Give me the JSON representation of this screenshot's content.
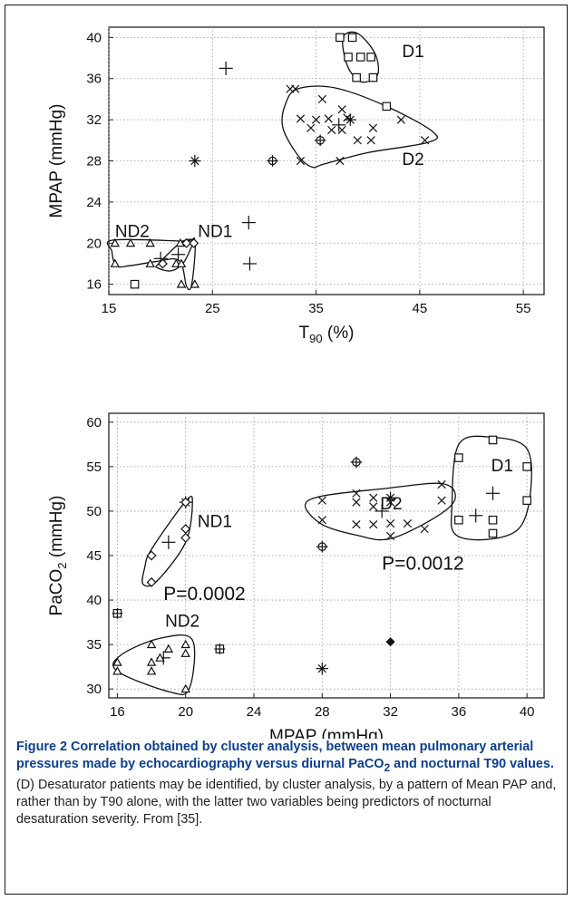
{
  "chart_data": [
    {
      "type": "scatter",
      "title": "",
      "xlabel": "T90 (%)",
      "xlabel_main": "T",
      "xlabel_sub": "90",
      "xlabel_tail": " (%)",
      "ylabel": "MPAP (mmHg)",
      "xlim": [
        15,
        57
      ],
      "ylim": [
        15,
        41
      ],
      "xticks": [
        15,
        25,
        35,
        45,
        55
      ],
      "yticks": [
        16,
        20,
        24,
        28,
        32,
        36,
        40
      ],
      "grid": true,
      "clusters": [
        {
          "name": "D1",
          "label_at": [
            43.3,
            38.1
          ],
          "outline": [
            [
              37.6,
              40.0
            ],
            [
              39.0,
              40.4
            ],
            [
              40.7,
              38.4
            ],
            [
              40.9,
              36.3
            ],
            [
              39.3,
              35.7
            ],
            [
              38.0,
              37.3
            ]
          ]
        },
        {
          "name": "D2",
          "label_at": [
            43.3,
            27.6
          ],
          "outline": [
            [
              33.2,
              35.0
            ],
            [
              36.8,
              35.1
            ],
            [
              41.8,
              33.3
            ],
            [
              46.3,
              30.8
            ],
            [
              45.8,
              29.8
            ],
            [
              40.0,
              28.8
            ],
            [
              35.8,
              27.7
            ],
            [
              34.6,
              27.4
            ],
            [
              33.2,
              28.6
            ],
            [
              31.8,
              31.2
            ],
            [
              32.0,
              33.4
            ]
          ]
        },
        {
          "name": "ND1",
          "label_at": [
            23.6,
            20.6
          ],
          "outline": [
            [
              19.8,
              18.0
            ],
            [
              22.0,
              20.1
            ],
            [
              23.2,
              20.3
            ],
            [
              23.0,
              19.7
            ],
            [
              22.2,
              18.1
            ],
            [
              21.0,
              17.3
            ],
            [
              19.7,
              17.6
            ]
          ]
        },
        {
          "name": "ND2",
          "label_at": [
            15.6,
            20.6
          ],
          "outline": [
            [
              15.4,
              20.3
            ],
            [
              22.2,
              20.2
            ],
            [
              23.3,
              20.2
            ],
            [
              23.0,
              16.0
            ],
            [
              22.5,
              15.8
            ],
            [
              21.8,
              18.3
            ],
            [
              19.5,
              18.2
            ],
            [
              17.0,
              17.8
            ],
            [
              15.7,
              17.8
            ],
            [
              15.3,
              19.2
            ]
          ]
        }
      ],
      "series": [
        {
          "marker": "square",
          "points": [
            [
              37.3,
              40.0
            ],
            [
              38.5,
              40.0
            ],
            [
              38.1,
              38.1
            ],
            [
              39.3,
              38.1
            ],
            [
              40.3,
              38.1
            ],
            [
              38.9,
              36.1
            ],
            [
              40.5,
              36.1
            ],
            [
              41.8,
              33.3
            ],
            [
              17.5,
              16.0
            ]
          ]
        },
        {
          "marker": "x",
          "points": [
            [
              32.5,
              35.0
            ],
            [
              33.0,
              35.0
            ],
            [
              35.6,
              34.0
            ],
            [
              33.5,
              32.1
            ],
            [
              35.0,
              32.0
            ],
            [
              36.2,
              32.1
            ],
            [
              37.5,
              33.0
            ],
            [
              38.0,
              32.2
            ],
            [
              37.5,
              31.0
            ],
            [
              36.5,
              31.0
            ],
            [
              34.5,
              31.2
            ],
            [
              40.5,
              31.2
            ],
            [
              39.0,
              30.0
            ],
            [
              40.3,
              30.0
            ],
            [
              43.2,
              32.0
            ],
            [
              45.5,
              30.0
            ],
            [
              33.5,
              28.0
            ],
            [
              37.3,
              28.0
            ]
          ]
        },
        {
          "marker": "plus",
          "points": [
            [
              26.3,
              37.0
            ],
            [
              37.2,
              31.5
            ],
            [
              20.0,
              18.5
            ],
            [
              21.7,
              18.9
            ],
            [
              28.5,
              22.0
            ],
            [
              28.6,
              18.0
            ]
          ]
        },
        {
          "marker": "star",
          "points": [
            [
              23.3,
              28.0
            ],
            [
              38.3,
              32.0
            ]
          ]
        },
        {
          "marker": "circle-plus",
          "points": [
            [
              30.8,
              28.0
            ],
            [
              35.4,
              30.0
            ]
          ]
        },
        {
          "marker": "triangle",
          "points": [
            [
              15.6,
              20.0
            ],
            [
              17.1,
              20.0
            ],
            [
              19.0,
              20.0
            ],
            [
              21.9,
              20.0
            ],
            [
              15.6,
              18.0
            ],
            [
              19.0,
              18.0
            ],
            [
              21.5,
              18.0
            ],
            [
              22.0,
              18.0
            ],
            [
              22.0,
              16.0
            ],
            [
              23.3,
              16.0
            ]
          ]
        },
        {
          "marker": "diamond",
          "points": [
            [
              20.2,
              18.0
            ],
            [
              22.5,
              20.0
            ],
            [
              23.2,
              20.0
            ]
          ]
        }
      ]
    },
    {
      "type": "scatter",
      "title": "",
      "xlabel": "MPAP (mmHg)",
      "ylabel": "PaCO2 (mmHg)",
      "ylabel_main": "PaCO",
      "ylabel_sub": "2",
      "ylabel_tail": " (mmHg)",
      "xlim": [
        15.5,
        41
      ],
      "ylim": [
        29,
        61
      ],
      "xticks": [
        16,
        20,
        24,
        28,
        32,
        36,
        40
      ],
      "yticks": [
        30,
        35,
        40,
        45,
        50,
        55,
        60
      ],
      "grid": true,
      "annotations": [
        {
          "text": "P=0.0002",
          "at": [
            18.7,
            40.0
          ]
        },
        {
          "text": "P=0.0012",
          "at": [
            31.5,
            43.4
          ]
        }
      ],
      "clusters": [
        {
          "name": "D1",
          "label_at": [
            37.9,
            54.5
          ],
          "outline": [
            [
              36.0,
              57.5
            ],
            [
              38.0,
              58.3
            ],
            [
              40.0,
              57.0
            ],
            [
              40.2,
              52.0
            ],
            [
              39.5,
              48.0
            ],
            [
              37.6,
              46.8
            ],
            [
              35.8,
              47.4
            ],
            [
              35.6,
              50.5
            ]
          ]
        },
        {
          "name": "D2",
          "label_at": [
            31.4,
            50.2
          ],
          "outline": [
            [
              28.0,
              51.7
            ],
            [
              31.5,
              52.5
            ],
            [
              35.0,
              53.1
            ],
            [
              35.8,
              51.5
            ],
            [
              34.8,
              49.5
            ],
            [
              32.0,
              46.9
            ],
            [
              30.0,
              47.3
            ],
            [
              28.0,
              48.5
            ],
            [
              27.0,
              50.6
            ]
          ]
        },
        {
          "name": "ND1",
          "label_at": [
            20.7,
            48.2
          ],
          "outline": [
            [
              17.5,
              41.8
            ],
            [
              18.3,
              42.1
            ],
            [
              20.0,
              46.5
            ],
            [
              20.4,
              51.0
            ],
            [
              20.0,
              51.1
            ],
            [
              18.0,
              45.7
            ],
            [
              17.6,
              43.6
            ]
          ]
        },
        {
          "name": "ND2",
          "label_at": [
            18.8,
            37.0
          ],
          "outline": [
            [
              16.0,
              32.0
            ],
            [
              19.0,
              29.7
            ],
            [
              20.2,
              30.0
            ],
            [
              20.4,
              35.5
            ],
            [
              18.5,
              35.7
            ],
            [
              16.2,
              33.8
            ]
          ]
        }
      ],
      "series": [
        {
          "marker": "square",
          "points": [
            [
              36.0,
              56.0
            ],
            [
              38.0,
              58.0
            ],
            [
              40.0,
              55.0
            ],
            [
              38.0,
              49.0
            ],
            [
              40.0,
              51.2
            ],
            [
              38.0,
              47.5
            ],
            [
              36.0,
              49.0
            ]
          ]
        },
        {
          "marker": "x",
          "points": [
            [
              28.0,
              51.2
            ],
            [
              30.0,
              52.0
            ],
            [
              31.0,
              51.5
            ],
            [
              32.0,
              51.0
            ],
            [
              35.0,
              53.0
            ],
            [
              28.0,
              49.0
            ],
            [
              30.0,
              51.0
            ],
            [
              31.0,
              50.5
            ],
            [
              35.0,
              51.2
            ],
            [
              30.0,
              48.5
            ],
            [
              31.0,
              48.5
            ],
            [
              32.0,
              48.6
            ],
            [
              33.0,
              48.6
            ],
            [
              34.0,
              48.0
            ],
            [
              32.0,
              47.2
            ]
          ]
        },
        {
          "marker": "plus",
          "points": [
            [
              31.5,
              50.0
            ],
            [
              38.0,
              52.0
            ],
            [
              37.0,
              49.5
            ],
            [
              19.0,
              46.5
            ],
            [
              18.7,
              33.5
            ]
          ]
        },
        {
          "marker": "star",
          "points": [
            [
              32.0,
              51.5
            ],
            [
              20.0,
              51.0
            ],
            [
              28.0,
              32.3
            ]
          ]
        },
        {
          "marker": "circle-plus",
          "points": [
            [
              30.0,
              55.5
            ],
            [
              28.0,
              46.0
            ]
          ]
        },
        {
          "marker": "diamond-solid",
          "points": [
            [
              32.0,
              35.3
            ]
          ]
        },
        {
          "marker": "hash-square",
          "points": [
            [
              16.0,
              38.5
            ],
            [
              22.0,
              34.5
            ]
          ]
        },
        {
          "marker": "triangle",
          "points": [
            [
              16.0,
              33.0
            ],
            [
              16.0,
              32.0
            ],
            [
              18.0,
              35.0
            ],
            [
              18.0,
              33.0
            ],
            [
              18.0,
              32.0
            ],
            [
              18.5,
              33.5
            ],
            [
              19.0,
              34.5
            ],
            [
              20.0,
              35.0
            ],
            [
              20.0,
              34.0
            ],
            [
              20.0,
              30.0
            ]
          ]
        },
        {
          "marker": "diamond",
          "points": [
            [
              18.0,
              42.0
            ],
            [
              18.0,
              45.0
            ],
            [
              20.0,
              47.0
            ],
            [
              20.0,
              48.0
            ],
            [
              20.0,
              51.0
            ]
          ]
        }
      ]
    }
  ],
  "caption": {
    "label": "Figure 2",
    "title": "Correlation obtained by cluster analysis, between mean pulmonary arterial pressures made by echocardiography versus diurnal PaCO",
    "title_sub": "2",
    "title_tail": " and nocturnal T90 values.",
    "body": "(D) Desaturator patients may be identified, by cluster analysis, by a pattern of Mean PAP and, rather than by T90 alone, with the latter two variables being predictors of nocturnal desaturation severity. From [35]."
  }
}
